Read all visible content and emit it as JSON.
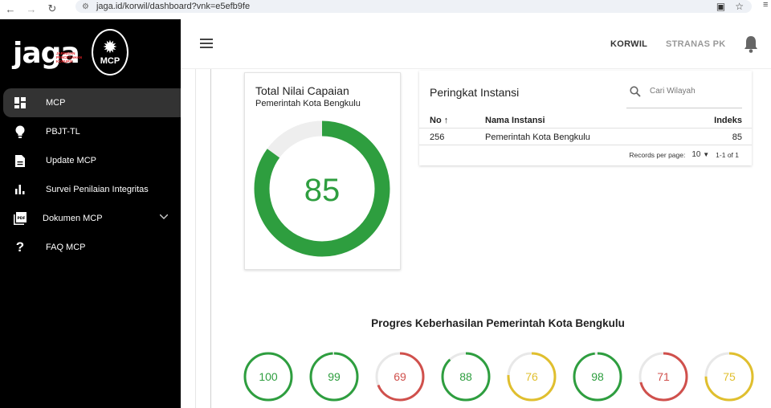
{
  "browser": {
    "url": "jaga.id/korwil/dashboard?vnk=e5efb9fe"
  },
  "sidebar": {
    "logo_text": "jaga",
    "logo_sub": "JARINGAN PENCEGAHAN KORUPSI",
    "badge_text": "MCP",
    "items": [
      {
        "label": "MCP",
        "icon": "dashboard-icon",
        "active": true
      },
      {
        "label": "PBJT-TL",
        "icon": "lightbulb-icon",
        "active": false
      },
      {
        "label": "Update MCP",
        "icon": "document-icon",
        "active": false
      },
      {
        "label": "Survei Penilaian Integritas",
        "icon": "bar-chart-icon",
        "active": false
      },
      {
        "label": "Dokumen MCP",
        "icon": "pdf-icon",
        "active": false,
        "expandable": true
      },
      {
        "label": "FAQ MCP",
        "icon": "question-icon",
        "active": false
      }
    ]
  },
  "appbar": {
    "korwil": "KORWIL",
    "stranas": "STRANAS PK"
  },
  "total_card": {
    "title": "Total Nilai Capaian",
    "subtitle": "Pemerintah Kota Bengkulu",
    "value": 85,
    "color": "#2e9e3f",
    "track_color": "#eeeeee"
  },
  "ranking_card": {
    "title": "Peringkat Instansi",
    "search_placeholder": "Cari Wilayah",
    "columns": {
      "no": "No",
      "name": "Nama Instansi",
      "index": "Indeks"
    },
    "rows": [
      {
        "no": "256",
        "name": "Pemerintah Kota Bengkulu",
        "index": "85"
      }
    ],
    "records_per_page_label": "Records per page:",
    "records_per_page": "10",
    "range": "1-1 of 1"
  },
  "progress": {
    "title": "Progres Keberhasilan Pemerintah Kota Bengkulu",
    "rings": [
      {
        "value": 100,
        "color": "#2e9e3f"
      },
      {
        "value": 99,
        "color": "#2e9e3f"
      },
      {
        "value": 69,
        "color": "#d0504c"
      },
      {
        "value": 88,
        "color": "#2e9e3f"
      },
      {
        "value": 76,
        "color": "#e0bf2e"
      },
      {
        "value": 98,
        "color": "#2e9e3f"
      },
      {
        "value": 71,
        "color": "#d0504c"
      },
      {
        "value": 75,
        "color": "#e0bf2e"
      }
    ]
  }
}
